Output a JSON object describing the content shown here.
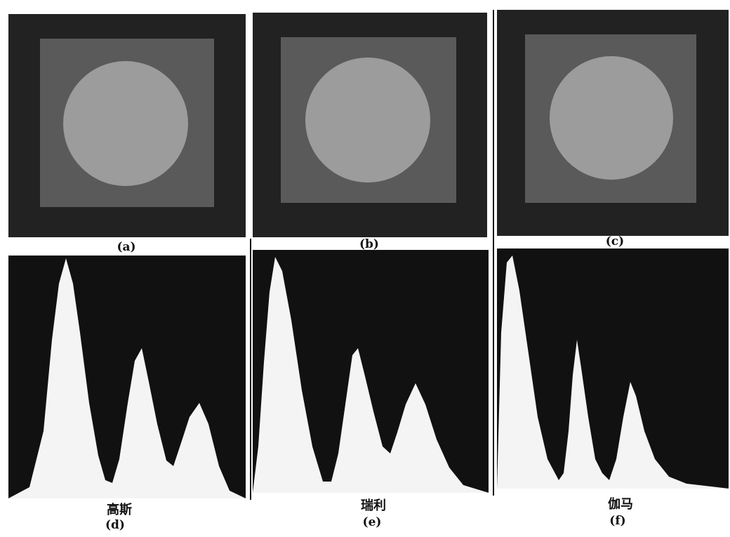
{
  "panels_top": [
    {
      "label": "(a)"
    },
    {
      "label": "(b)"
    },
    {
      "label": "(c)"
    }
  ],
  "panels_bottom": [
    {
      "name": "高斯",
      "label": "(d)"
    },
    {
      "name": "瑞利",
      "label": "(e)"
    },
    {
      "name": "伽马",
      "label": "(f)"
    }
  ],
  "colors": {
    "background_dark": "#222222",
    "square_gray": "#5a5a5a",
    "circle_gray": "#9c9c9c",
    "histogram_fill": "#f4f4f4",
    "histogram_dark": "#111111"
  }
}
